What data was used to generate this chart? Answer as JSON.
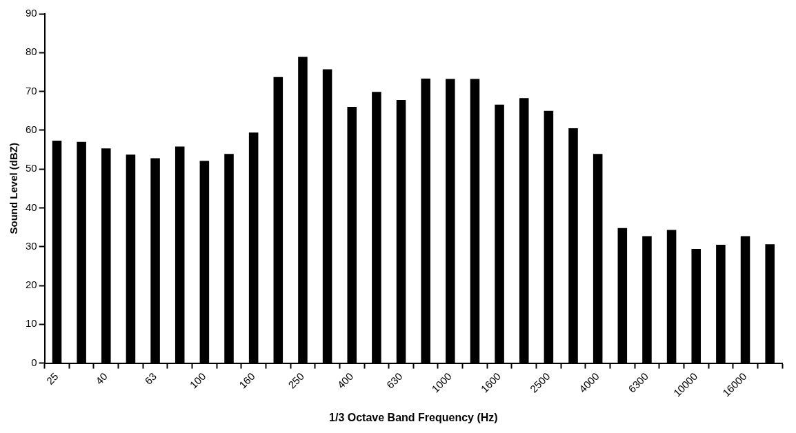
{
  "chart_data": {
    "type": "bar",
    "xlabel": "1/3 Octave Band Frequency (Hz)",
    "ylabel": "Sound Level (dBZ)",
    "categories": [
      "25",
      null,
      "40",
      null,
      "63",
      null,
      "100",
      null,
      "160",
      null,
      "250",
      null,
      "400",
      null,
      "630",
      null,
      "1000",
      null,
      "1600",
      null,
      "2500",
      null,
      "4000",
      null,
      "6300",
      null,
      "10000",
      null,
      "16000",
      null
    ],
    "values": [
      57.3,
      57.0,
      55.3,
      53.7,
      52.8,
      55.8,
      52.1,
      53.9,
      59.4,
      73.7,
      78.9,
      75.7,
      66.0,
      69.9,
      67.8,
      73.3,
      73.2,
      73.2,
      66.6,
      68.3,
      65.0,
      60.5,
      53.9,
      34.8,
      32.7,
      34.3,
      29.4,
      30.5,
      32.7,
      30.6
    ],
    "color": "#000000",
    "ylim": [
      0,
      90
    ],
    "yticks": [
      0,
      10,
      20,
      30,
      40,
      50,
      60,
      70,
      80,
      90
    ],
    "grid": false,
    "legend": false
  }
}
